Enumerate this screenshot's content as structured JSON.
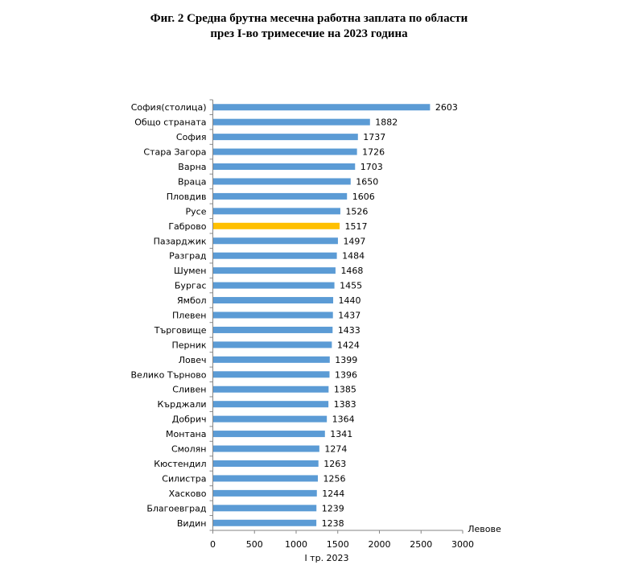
{
  "chart_data": {
    "type": "bar",
    "orientation": "horizontal",
    "title_line1": "Фиг. 2 Средна брутна месечна работна заплата по области",
    "title_line2": "през I-во тримесечие на 2023 година",
    "xlabel": "I тр. 2023",
    "unit_label": "Левове",
    "xlim": [
      0,
      3000
    ],
    "xticks": [
      0,
      500,
      1000,
      1500,
      2000,
      2500,
      3000
    ],
    "grid": false,
    "bar_color": "#5B9BD5",
    "highlight_color": "#FFC000",
    "highlight_category": "Габрово",
    "categories": [
      "София(столица)",
      "Общо страната",
      "София",
      "Стара Загора",
      "Варна",
      "Враца",
      "Пловдив",
      "Русе",
      "Габрово",
      "Пазарджик",
      "Разград",
      "Шумен",
      "Бургас",
      "Ямбол",
      "Плевен",
      "Търговище",
      "Перник",
      "Ловеч",
      "Велико Търново",
      "Сливен",
      "Кърджали",
      "Добрич",
      "Монтана",
      "Смолян",
      "Кюстендил",
      "Силистра",
      "Хасково",
      "Благоевград",
      "Видин"
    ],
    "values": [
      2603,
      1882,
      1737,
      1726,
      1703,
      1650,
      1606,
      1526,
      1517,
      1497,
      1484,
      1468,
      1455,
      1440,
      1437,
      1433,
      1424,
      1399,
      1396,
      1385,
      1383,
      1364,
      1341,
      1274,
      1263,
      1256,
      1244,
      1239,
      1238
    ]
  }
}
